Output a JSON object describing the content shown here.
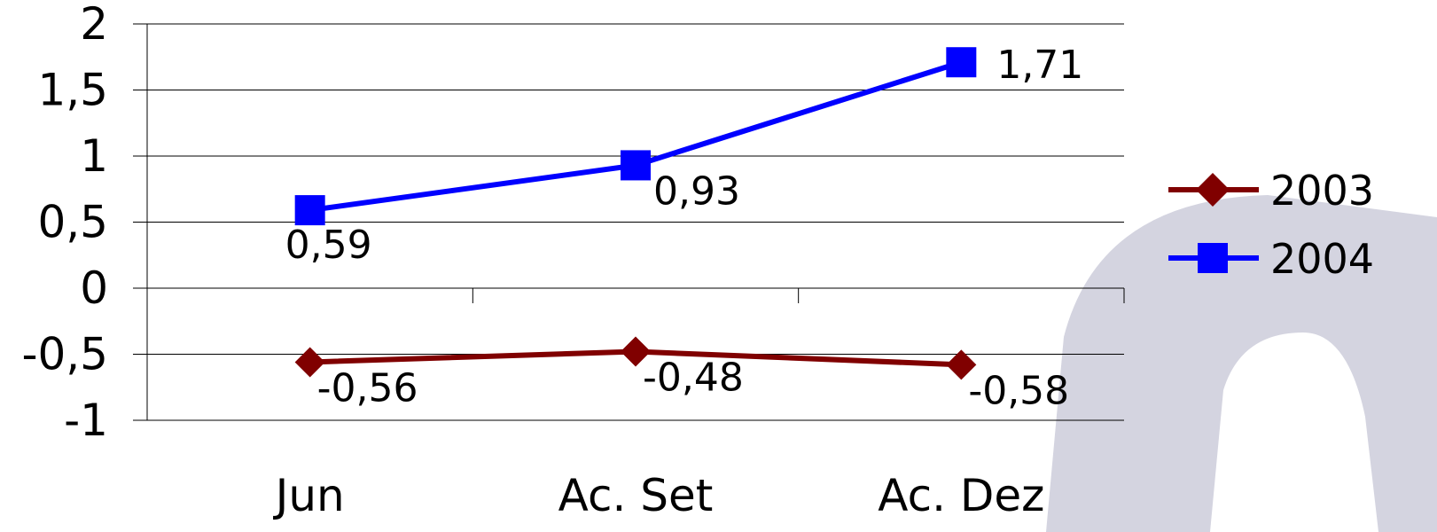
{
  "chart_data": {
    "type": "line",
    "categories": [
      "Jun",
      "Ac. Set",
      "Ac. Dez"
    ],
    "series": [
      {
        "name": "2003",
        "values": [
          -0.56,
          -0.48,
          -0.58
        ],
        "labels": [
          "-0,56",
          "-0,48",
          "-0,58"
        ],
        "color": "#800000",
        "marker": "diamond"
      },
      {
        "name": "2004",
        "values": [
          0.59,
          0.93,
          1.71
        ],
        "labels": [
          "0,59",
          "0,93",
          "1,71"
        ],
        "color": "#0000ff",
        "marker": "square"
      }
    ],
    "ylim": [
      -1,
      2
    ],
    "yticks": [
      2,
      1.5,
      1,
      0.5,
      0,
      -0.5,
      -1
    ],
    "ytick_labels": [
      "2",
      "1,5",
      "1",
      "0,5",
      "0",
      "-0,5",
      "-1"
    ],
    "grid": true,
    "legend": "right",
    "title": "",
    "xlabel": "",
    "ylabel": ""
  },
  "watermark": {
    "color": "#d4d4e0"
  }
}
